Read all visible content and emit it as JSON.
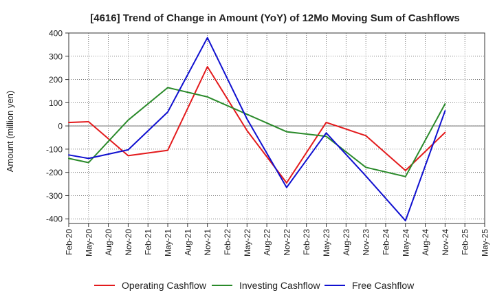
{
  "chart_data": {
    "type": "line",
    "title": "[4616]  Trend of Change in Amount (YoY) of 12Mo Moving Sum of Cashflows",
    "xlabel": "",
    "ylabel": "Amount (million yen)",
    "ylim": [
      -420,
      400
    ],
    "yticks": [
      400,
      300,
      200,
      100,
      0,
      -100,
      -200,
      -300,
      -400
    ],
    "categories": [
      "Feb-20",
      "May-20",
      "Aug-20",
      "Nov-20",
      "Feb-21",
      "May-21",
      "Aug-21",
      "Nov-21",
      "Feb-22",
      "May-22",
      "Aug-22",
      "Nov-22",
      "Feb-23",
      "May-23",
      "Aug-23",
      "Nov-23",
      "Feb-24",
      "May-24",
      "Aug-24",
      "Nov-24",
      "Feb-25",
      "May-25"
    ],
    "grid": true,
    "legend_position": "bottom",
    "series": [
      {
        "name": "Operating Cashflow",
        "color": "#e31a1c",
        "values": [
          15,
          18,
          null,
          -128,
          null,
          -105,
          null,
          255,
          null,
          -20,
          null,
          -245,
          null,
          15,
          null,
          -42,
          null,
          -192,
          null,
          -28,
          null,
          null
        ]
      },
      {
        "name": "Investing Cashflow",
        "color": "#2a8a2a",
        "values": [
          -140,
          -158,
          null,
          25,
          null,
          165,
          null,
          125,
          null,
          50,
          null,
          -25,
          null,
          -45,
          null,
          -178,
          null,
          -218,
          null,
          95,
          null,
          null
        ]
      },
      {
        "name": "Free Cashflow",
        "color": "#1010d0",
        "values": [
          -125,
          -140,
          null,
          -103,
          null,
          60,
          null,
          380,
          null,
          30,
          null,
          -265,
          null,
          -30,
          null,
          -215,
          null,
          -408,
          null,
          65,
          null,
          null
        ]
      }
    ]
  }
}
